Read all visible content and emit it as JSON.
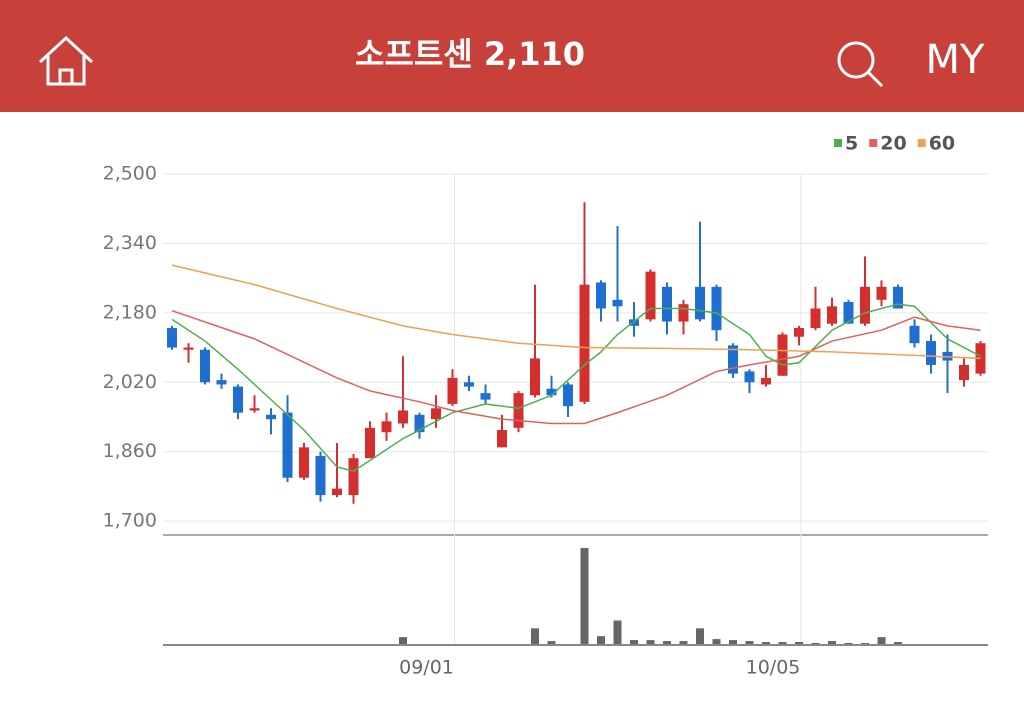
{
  "header": {
    "title": "소프트센 2,110",
    "menu": "MY"
  },
  "chart_data": {
    "type": "candlestick",
    "categories": [
      null,
      null,
      null,
      null,
      null,
      null,
      null,
      null,
      null,
      null,
      null,
      null,
      null,
      null,
      null,
      null,
      null,
      "09/01",
      null,
      null,
      null,
      null,
      null,
      null,
      null,
      null,
      null,
      null,
      null,
      null,
      null,
      null,
      null,
      null,
      null,
      null,
      null,
      null,
      "10/05",
      null,
      null,
      null,
      null,
      null,
      null,
      null,
      null,
      null,
      null,
      null
    ],
    "open": [
      2145,
      2095,
      2095,
      2025,
      2010,
      1955,
      1945,
      1950,
      1800,
      1850,
      1760,
      1760,
      1845,
      1905,
      1925,
      1945,
      1935,
      1970,
      2020,
      1995,
      1870,
      1915,
      1990,
      2005,
      2015,
      1975,
      2250,
      2210,
      2165,
      2165,
      2240,
      2160,
      2240,
      2240,
      2105,
      2045,
      2015,
      2035,
      2125,
      2145,
      2155,
      2205,
      2155,
      2210,
      2240,
      2150,
      2115,
      2090,
      2025,
      2040
    ],
    "high": [
      2150,
      2110,
      2100,
      2040,
      2015,
      1990,
      1960,
      1990,
      1880,
      1860,
      1880,
      1855,
      1930,
      1950,
      2080,
      1950,
      1990,
      2050,
      2035,
      2015,
      1945,
      2000,
      2245,
      2035,
      2020,
      2435,
      2255,
      2380,
      2205,
      2280,
      2250,
      2210,
      2390,
      2245,
      2110,
      2050,
      2060,
      2135,
      2150,
      2240,
      2215,
      2210,
      2310,
      2255,
      2245,
      2165,
      2130,
      2130,
      2075,
      2115
    ],
    "low": [
      2095,
      2065,
      2015,
      2005,
      1935,
      1950,
      1900,
      1790,
      1795,
      1745,
      1755,
      1740,
      1845,
      1885,
      1915,
      1890,
      1915,
      1965,
      2000,
      1970,
      1870,
      1905,
      1985,
      1985,
      1940,
      1970,
      2160,
      2160,
      2125,
      2160,
      2130,
      2130,
      2160,
      2115,
      2030,
      1995,
      2010,
      2035,
      2105,
      2140,
      2150,
      2155,
      2150,
      2195,
      2190,
      2100,
      2040,
      1995,
      2010,
      2035
    ],
    "close": [
      2100,
      2100,
      2020,
      2015,
      1950,
      1960,
      1935,
      1800,
      1870,
      1760,
      1775,
      1845,
      1915,
      1930,
      1955,
      1905,
      1960,
      2030,
      2010,
      1980,
      1910,
      1995,
      2075,
      1990,
      1965,
      2245,
      2190,
      2195,
      2150,
      2275,
      2160,
      2200,
      2165,
      2140,
      2040,
      2020,
      2030,
      2130,
      2145,
      2190,
      2195,
      2155,
      2240,
      2240,
      2190,
      2110,
      2060,
      2070,
      2060,
      2110
    ],
    "up_color": "#d32f2f",
    "down_color": "#1e6fd0",
    "ylim": [
      1668,
      2500
    ],
    "yticks": [
      {
        "value": 1700,
        "label": "1,700"
      },
      {
        "value": 1860,
        "label": "1,860"
      },
      {
        "value": 2020,
        "label": "2,020"
      },
      {
        "value": 2180,
        "label": "2,180"
      },
      {
        "value": 2340,
        "label": "2,340"
      },
      {
        "value": 2500,
        "label": "2,500"
      }
    ],
    "series": [
      {
        "name": "5",
        "color": "#4caf50",
        "x": [
          0,
          2,
          4,
          6,
          8,
          10,
          11,
          12,
          14,
          16,
          17,
          19,
          21,
          23,
          25,
          26,
          27,
          29,
          31,
          33,
          35,
          36,
          37,
          38,
          40,
          42,
          44,
          45,
          47,
          49
        ],
        "values": [
          2165,
          2115,
          2050,
          1980,
          1910,
          1825,
          1815,
          1840,
          1890,
          1930,
          1950,
          1970,
          1960,
          1990,
          2060,
          2090,
          2130,
          2190,
          2190,
          2180,
          2130,
          2080,
          2060,
          2065,
          2140,
          2180,
          2200,
          2195,
          2120,
          2080
        ]
      },
      {
        "name": "20",
        "color": "#e06060",
        "x": [
          0,
          5,
          10,
          12,
          15,
          17,
          20,
          23,
          25,
          27,
          30,
          33,
          35,
          38,
          40,
          43,
          45,
          47,
          49
        ],
        "values": [
          2185,
          2120,
          2030,
          2000,
          1975,
          1955,
          1935,
          1925,
          1925,
          1950,
          1990,
          2045,
          2060,
          2080,
          2115,
          2140,
          2170,
          2150,
          2140
        ]
      },
      {
        "name": "60",
        "color": "#f0a050",
        "x": [
          0,
          5,
          10,
          14,
          17,
          21,
          25,
          30,
          35,
          40,
          45,
          49
        ],
        "values": [
          2290,
          2245,
          2190,
          2150,
          2130,
          2110,
          2100,
          2098,
          2095,
          2090,
          2082,
          2075
        ]
      }
    ],
    "volume": [
      0,
      0,
      0,
      0,
      0,
      0,
      0,
      0,
      0,
      0,
      0,
      0,
      0,
      0,
      7,
      0,
      0,
      0,
      0,
      0,
      0,
      0,
      16,
      3,
      0,
      98,
      8,
      24,
      4,
      4,
      3,
      3,
      16,
      5,
      4,
      3,
      2,
      2,
      2,
      1,
      3,
      1,
      1,
      7,
      2,
      0,
      0,
      0,
      0,
      0
    ],
    "volume_color": "#666666",
    "volume_lim": [
      0,
      100
    ]
  }
}
